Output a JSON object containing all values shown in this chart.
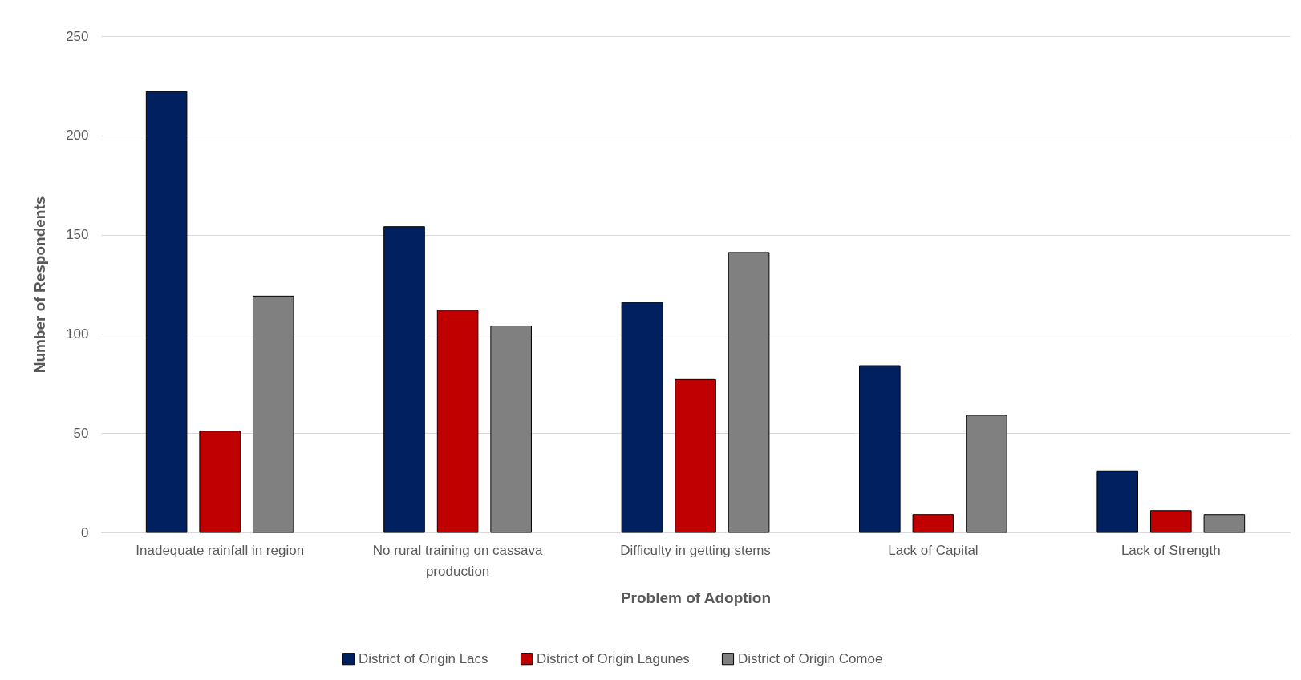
{
  "chart_data": {
    "type": "bar",
    "xlabel": "Problem of Adoption",
    "ylabel": "Number of Respondents",
    "categories": [
      "Inadequate rainfall in region",
      "No rural training on cassava production",
      "Difficulty in getting stems",
      "Lack of Capital",
      "Lack of Strength"
    ],
    "series": [
      {
        "name": "District of Origin Lacs",
        "color": "#002060",
        "values": [
          222,
          154,
          116,
          84,
          31
        ]
      },
      {
        "name": "District of Origin Lagunes",
        "color": "#c00000",
        "values": [
          51,
          112,
          77,
          9,
          11
        ]
      },
      {
        "name": "District of Origin Comoe",
        "color": "#808080",
        "values": [
          119,
          104,
          141,
          59,
          9
        ]
      }
    ],
    "ylim": [
      0,
      250
    ],
    "yticks": [
      0,
      50,
      100,
      150,
      200,
      250
    ],
    "grid": "y",
    "legend": "bottom"
  }
}
